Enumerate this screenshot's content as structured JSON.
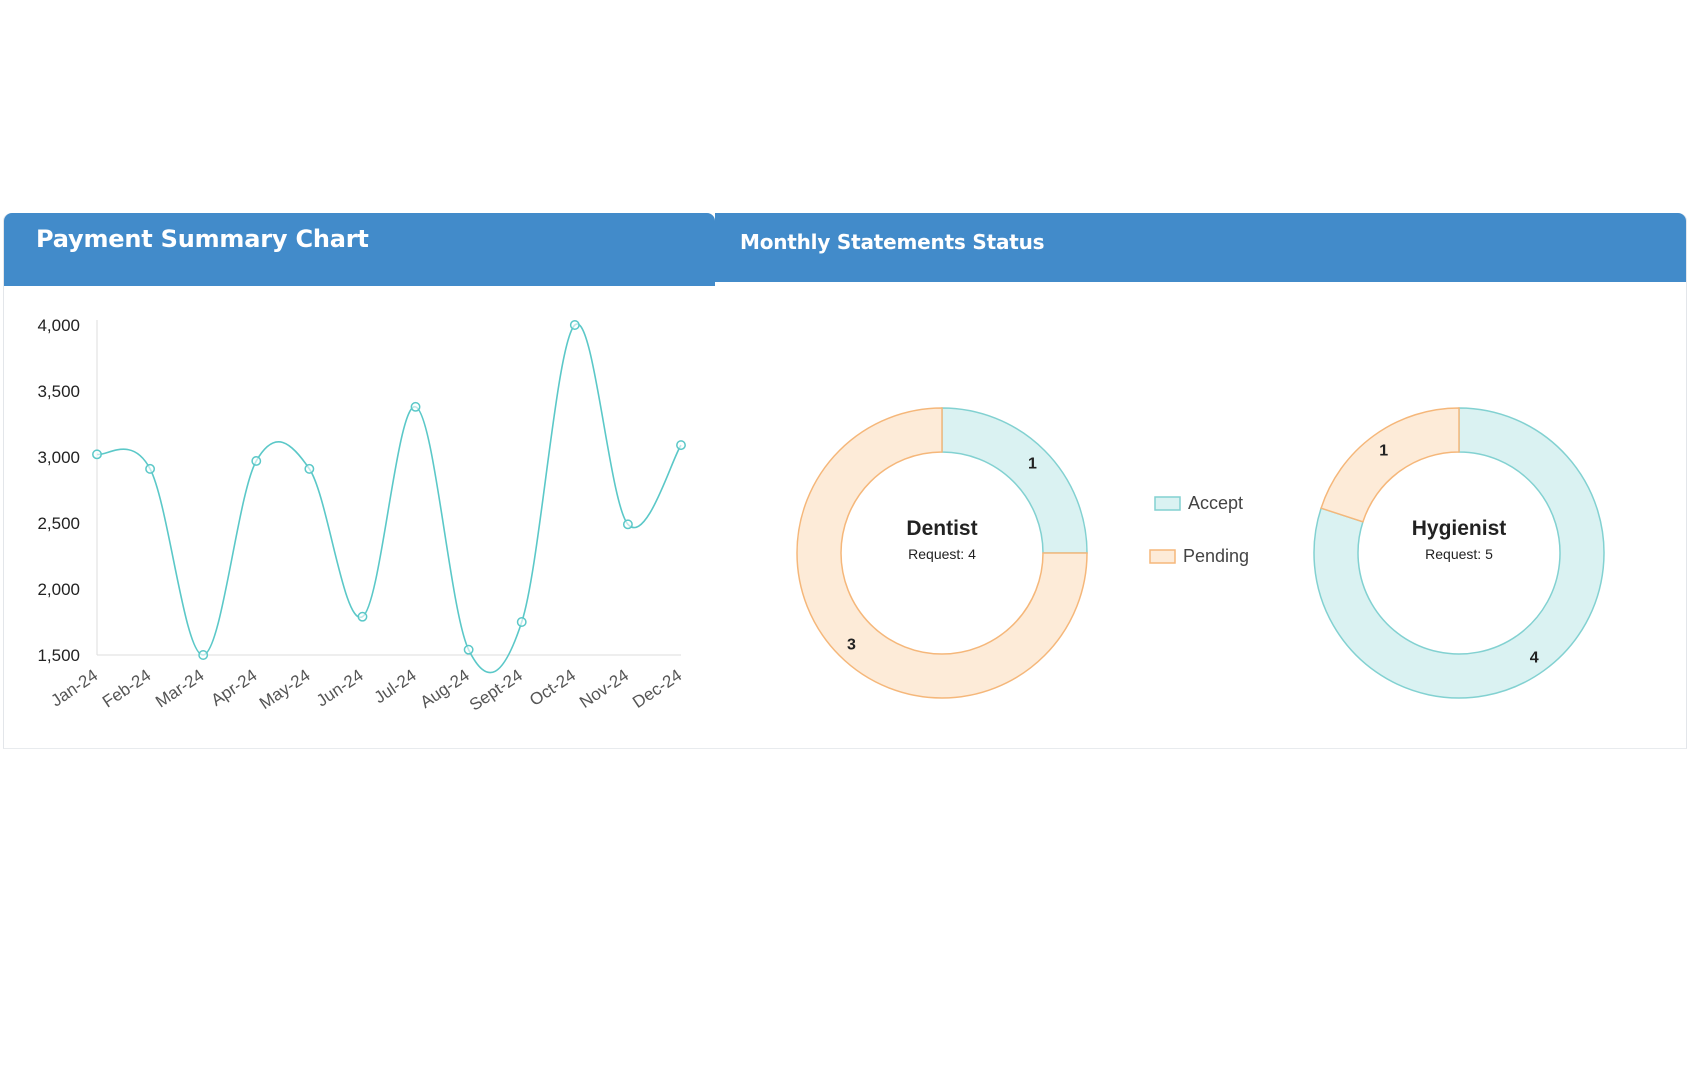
{
  "payment_panel": {
    "title": "Payment Summary Chart"
  },
  "statements_panel": {
    "title": "Monthly Statements Status"
  },
  "colors": {
    "header_bg": "#428bca",
    "line": "#5bc8c8",
    "accept_fill": "#daf2f2",
    "accept_stroke": "#82d1d1",
    "pending_fill": "#fdebd8",
    "pending_stroke": "#f5b77a"
  },
  "chart_data": [
    {
      "type": "line",
      "categories": [
        "Jan-24",
        "Feb-24",
        "Mar-24",
        "Apr-24",
        "May-24",
        "Jun-24",
        "Jul-24",
        "Aug-24",
        "Sept-24",
        "Oct-24",
        "Nov-24",
        "Dec-24"
      ],
      "series": [
        {
          "values": [
            3020,
            2910,
            1500,
            2970,
            2910,
            1790,
            3380,
            1540,
            1750,
            4000,
            2490,
            3090
          ]
        }
      ],
      "yticks": [
        "1,500",
        "2,000",
        "2,500",
        "3,000",
        "3,500",
        "4,000"
      ],
      "ylim": [
        1500,
        4000
      ],
      "curve": "smooth",
      "grid": false
    },
    {
      "type": "pie",
      "variant": "doughnut",
      "title": "Dentist",
      "subtitle": "Request: 4",
      "labels": [
        "Accept",
        "Pending"
      ],
      "values": [
        1,
        3
      ]
    },
    {
      "type": "pie",
      "variant": "doughnut",
      "title": "Hygienist",
      "subtitle": "Request: 5",
      "labels": [
        "Accept",
        "Pending"
      ],
      "values": [
        4,
        1
      ]
    }
  ],
  "legend": {
    "items": [
      {
        "label": "Accept",
        "color": "accept"
      },
      {
        "label": "Pending",
        "color": "pending"
      }
    ],
    "placement": "center"
  }
}
